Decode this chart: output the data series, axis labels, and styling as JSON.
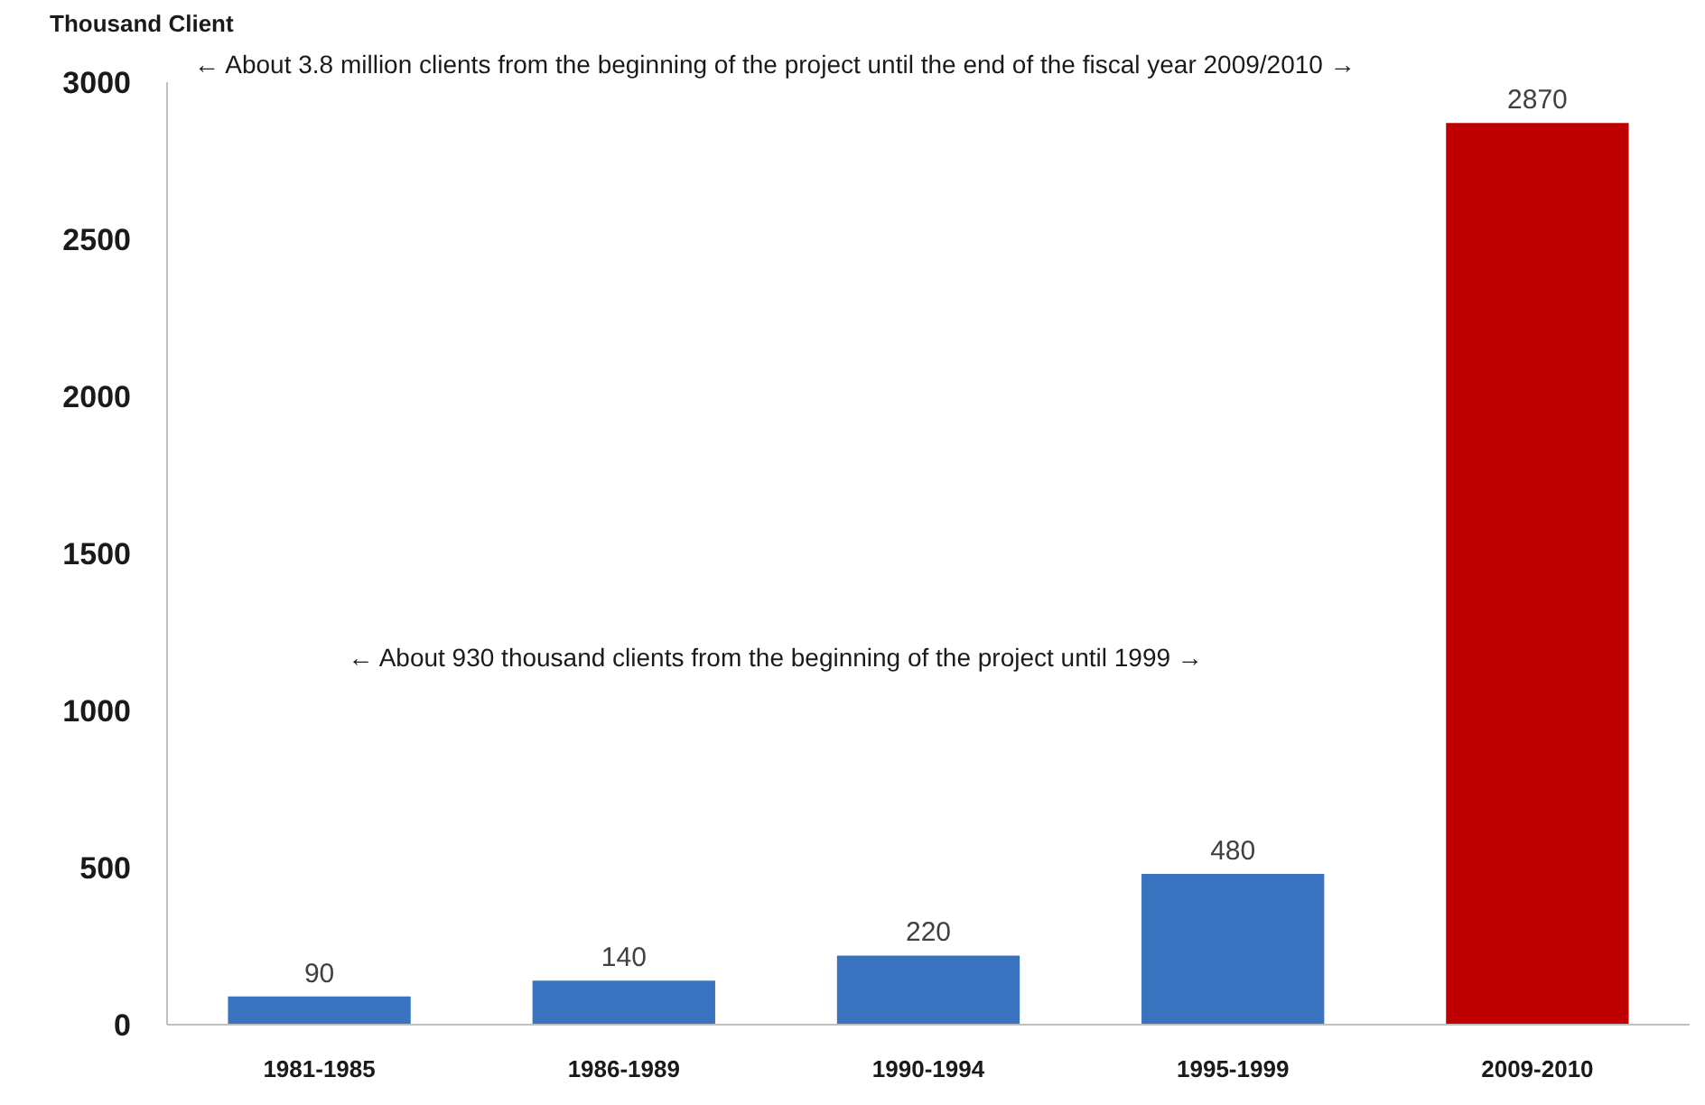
{
  "chart_data": {
    "type": "bar",
    "ylabel": "Thousand Client",
    "categories": [
      "1981-1985",
      "1986-1989",
      "1990-1994",
      "1995-1999",
      "2009-2010"
    ],
    "values": [
      90,
      140,
      220,
      480,
      2870
    ],
    "colors": [
      "#3a73c0",
      "#3a73c0",
      "#3a73c0",
      "#3a73c0",
      "#c00000"
    ],
    "ylim": [
      0,
      3000
    ],
    "yticks": [
      0,
      500,
      1000,
      1500,
      2000,
      2500,
      3000
    ],
    "grid": false,
    "data_labels": true,
    "annotations": [
      "← About 3.8 million clients from the beginning of the project until the end of the fiscal year 2009/2010 →",
      "← About 930 thousand clients from the beginning of the project until 1999 →"
    ]
  }
}
